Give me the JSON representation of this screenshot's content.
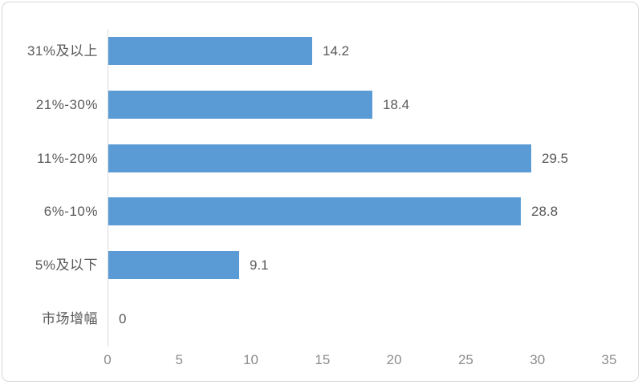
{
  "chart_data": {
    "type": "bar",
    "orientation": "horizontal",
    "title": "",
    "xlabel": "",
    "ylabel": "",
    "categories": [
      "31%及以上",
      "21%-30%",
      "11%-20%",
      "6%-10%",
      "5%及以下",
      "市场增幅"
    ],
    "values": [
      14.2,
      18.4,
      29.5,
      28.8,
      9.1,
      0
    ],
    "value_labels": [
      "14.2",
      "18.4",
      "29.5",
      "28.8",
      "9.1",
      "0"
    ],
    "xlim": [
      0,
      35
    ],
    "x_ticks": [
      "0",
      "5",
      "10",
      "15",
      "20",
      "25",
      "30",
      "35"
    ],
    "grid": false,
    "legend": false,
    "colors": {
      "bar": "#5B9BD5",
      "axis_line": "#D9D9D9",
      "category_label": "#595959",
      "value_label": "#595959",
      "tick_label": "#8C8C8C",
      "background": "#FFFFFF",
      "frame_border": "#D8D8D8"
    }
  }
}
